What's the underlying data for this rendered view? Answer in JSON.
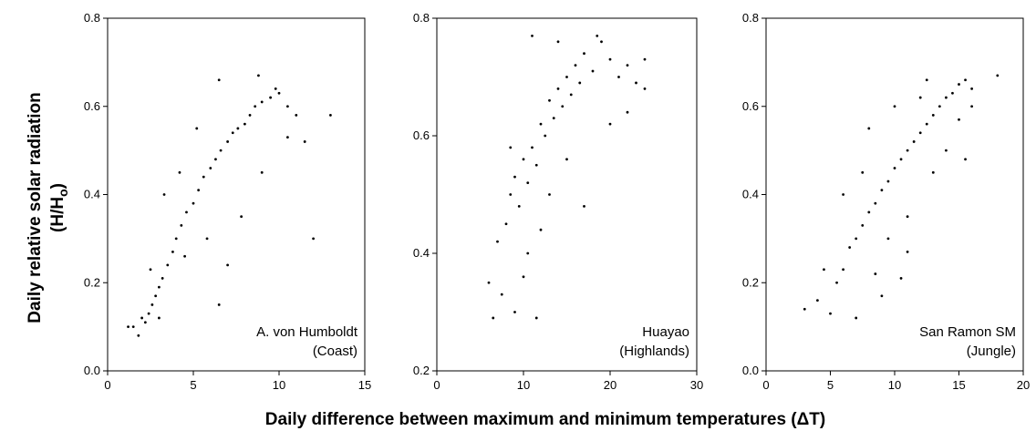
{
  "figure": {
    "shared_ylabel_line1": "Daily relative solar radiation",
    "shared_ylabel_line2_pre": "(H/H",
    "shared_ylabel_line2_sub": "o",
    "shared_ylabel_line2_post": ")",
    "shared_xlabel": "Daily difference between maximum and minimum temperatures (ΔT)"
  },
  "chart_data": [
    {
      "type": "scatter",
      "station": "A. von Humboldt",
      "region": "(Coast)",
      "xlim": [
        0,
        15
      ],
      "ylim": [
        0.0,
        0.8
      ],
      "xticks": [
        0,
        5,
        10,
        15
      ],
      "yticks": [
        "0.0",
        "0.2",
        "0.4",
        "0.6",
        "0.8"
      ],
      "points": [
        [
          1.2,
          0.1
        ],
        [
          1.5,
          0.1
        ],
        [
          1.8,
          0.08
        ],
        [
          2.0,
          0.12
        ],
        [
          2.2,
          0.11
        ],
        [
          2.4,
          0.13
        ],
        [
          2.6,
          0.15
        ],
        [
          2.8,
          0.17
        ],
        [
          3.0,
          0.19
        ],
        [
          3.2,
          0.21
        ],
        [
          3.5,
          0.24
        ],
        [
          3.8,
          0.27
        ],
        [
          4.0,
          0.3
        ],
        [
          4.3,
          0.33
        ],
        [
          4.6,
          0.36
        ],
        [
          5.0,
          0.38
        ],
        [
          5.3,
          0.41
        ],
        [
          5.6,
          0.44
        ],
        [
          6.0,
          0.46
        ],
        [
          6.3,
          0.48
        ],
        [
          6.6,
          0.5
        ],
        [
          7.0,
          0.52
        ],
        [
          7.3,
          0.54
        ],
        [
          7.6,
          0.55
        ],
        [
          8.0,
          0.56
        ],
        [
          8.3,
          0.58
        ],
        [
          8.6,
          0.6
        ],
        [
          9.0,
          0.61
        ],
        [
          9.5,
          0.62
        ],
        [
          10.0,
          0.63
        ],
        [
          10.5,
          0.6
        ],
        [
          11.0,
          0.58
        ],
        [
          11.5,
          0.52
        ],
        [
          12.0,
          0.3
        ],
        [
          13.0,
          0.58
        ],
        [
          6.5,
          0.66
        ],
        [
          8.8,
          0.67
        ],
        [
          9.8,
          0.64
        ],
        [
          3.3,
          0.4
        ],
        [
          4.5,
          0.26
        ],
        [
          5.8,
          0.3
        ],
        [
          7.0,
          0.24
        ],
        [
          6.5,
          0.15
        ],
        [
          7.8,
          0.35
        ],
        [
          9.0,
          0.45
        ],
        [
          4.2,
          0.45
        ],
        [
          5.2,
          0.55
        ],
        [
          3.0,
          0.12
        ],
        [
          2.5,
          0.23
        ],
        [
          10.5,
          0.53
        ]
      ]
    },
    {
      "type": "scatter",
      "station": "Huayao",
      "region": "(Highlands)",
      "xlim": [
        0,
        30
      ],
      "ylim": [
        0.2,
        0.8
      ],
      "xticks": [
        0,
        10,
        20,
        30
      ],
      "yticks": [
        "0.2",
        "0.4",
        "0.6",
        "0.8"
      ],
      "points": [
        [
          6.0,
          0.35
        ],
        [
          6.5,
          0.29
        ],
        [
          7.0,
          0.42
        ],
        [
          7.5,
          0.33
        ],
        [
          8.0,
          0.45
        ],
        [
          8.5,
          0.5
        ],
        [
          9.0,
          0.53
        ],
        [
          9.5,
          0.48
        ],
        [
          10.0,
          0.56
        ],
        [
          10.5,
          0.52
        ],
        [
          11.0,
          0.58
        ],
        [
          11.5,
          0.55
        ],
        [
          12.0,
          0.62
        ],
        [
          12.5,
          0.6
        ],
        [
          13.0,
          0.66
        ],
        [
          13.5,
          0.63
        ],
        [
          14.0,
          0.68
        ],
        [
          14.5,
          0.65
        ],
        [
          15.0,
          0.7
        ],
        [
          15.5,
          0.67
        ],
        [
          16.0,
          0.72
        ],
        [
          16.5,
          0.69
        ],
        [
          17.0,
          0.74
        ],
        [
          18.0,
          0.71
        ],
        [
          19.0,
          0.76
        ],
        [
          20.0,
          0.73
        ],
        [
          21.0,
          0.7
        ],
        [
          22.0,
          0.72
        ],
        [
          23.0,
          0.69
        ],
        [
          24.0,
          0.68
        ],
        [
          9.0,
          0.3
        ],
        [
          10.0,
          0.36
        ],
        [
          11.5,
          0.29
        ],
        [
          11.0,
          0.77
        ],
        [
          12.0,
          0.44
        ],
        [
          13.0,
          0.5
        ],
        [
          15.0,
          0.56
        ],
        [
          17.0,
          0.48
        ],
        [
          20.0,
          0.62
        ],
        [
          22.0,
          0.64
        ],
        [
          8.5,
          0.58
        ],
        [
          10.5,
          0.4
        ],
        [
          14.0,
          0.76
        ],
        [
          18.5,
          0.77
        ],
        [
          24.0,
          0.73
        ]
      ]
    },
    {
      "type": "scatter",
      "station": "San Ramon SM",
      "region": "(Jungle)",
      "xlim": [
        0,
        20
      ],
      "ylim": [
        0.0,
        0.8
      ],
      "xticks": [
        0,
        5,
        10,
        15,
        20
      ],
      "yticks": [
        "0.0",
        "0.2",
        "0.4",
        "0.6",
        "0.8"
      ],
      "points": [
        [
          3.0,
          0.14
        ],
        [
          4.0,
          0.16
        ],
        [
          4.5,
          0.23
        ],
        [
          5.0,
          0.13
        ],
        [
          5.5,
          0.2
        ],
        [
          6.0,
          0.23
        ],
        [
          6.5,
          0.28
        ],
        [
          7.0,
          0.12
        ],
        [
          7.0,
          0.3
        ],
        [
          7.5,
          0.33
        ],
        [
          8.0,
          0.36
        ],
        [
          8.5,
          0.38
        ],
        [
          9.0,
          0.41
        ],
        [
          9.5,
          0.43
        ],
        [
          10.0,
          0.46
        ],
        [
          10.5,
          0.48
        ],
        [
          11.0,
          0.5
        ],
        [
          11.5,
          0.52
        ],
        [
          12.0,
          0.54
        ],
        [
          12.5,
          0.56
        ],
        [
          13.0,
          0.58
        ],
        [
          13.5,
          0.6
        ],
        [
          14.0,
          0.62
        ],
        [
          14.5,
          0.63
        ],
        [
          15.0,
          0.65
        ],
        [
          15.5,
          0.66
        ],
        [
          16.0,
          0.64
        ],
        [
          16.0,
          0.6
        ],
        [
          18.0,
          0.67
        ],
        [
          9.0,
          0.17
        ],
        [
          8.0,
          0.55
        ],
        [
          9.5,
          0.3
        ],
        [
          11.0,
          0.35
        ],
        [
          12.0,
          0.62
        ],
        [
          14.0,
          0.5
        ],
        [
          15.5,
          0.48
        ],
        [
          10.0,
          0.6
        ],
        [
          7.5,
          0.45
        ],
        [
          13.0,
          0.45
        ],
        [
          6.0,
          0.4
        ],
        [
          15.0,
          0.57
        ],
        [
          12.5,
          0.66
        ],
        [
          11.0,
          0.27
        ],
        [
          10.5,
          0.21
        ],
        [
          8.5,
          0.22
        ]
      ]
    }
  ]
}
